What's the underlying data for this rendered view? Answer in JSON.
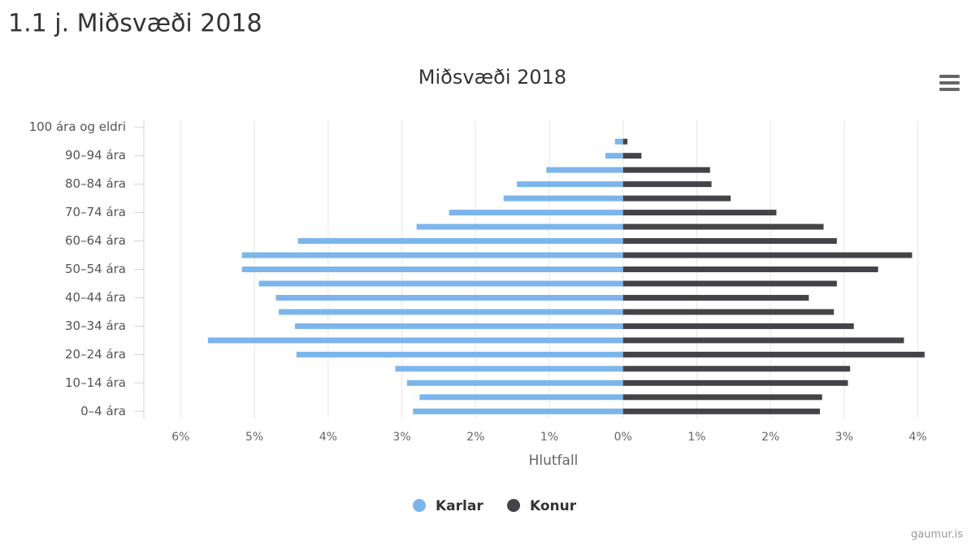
{
  "page_title": "1.1 j. Miðsvæði 2018",
  "credit": "gaumur.is",
  "chart_data": {
    "type": "pyramid",
    "title": "Miðsvæði 2018",
    "x_label": "Hlutfall",
    "categories": [
      "0–4 ára",
      null,
      "10–14 ára",
      null,
      "20–24 ára",
      null,
      "30–34 ára",
      null,
      "40–44 ára",
      null,
      "50–54 ára",
      null,
      "60–64 ára",
      null,
      "70–74 ára",
      null,
      "80–84 ára",
      null,
      "90–94 ára",
      null,
      "100 ára og eldri"
    ],
    "series": [
      {
        "name": "Karlar",
        "color": "#7cb5ec",
        "values": [
          -2.85,
          -2.76,
          -2.93,
          -3.09,
          -4.43,
          -5.63,
          -4.45,
          -4.67,
          -4.71,
          -4.94,
          -5.17,
          -5.17,
          -4.41,
          -2.8,
          -2.36,
          -1.62,
          -1.44,
          -1.04,
          -0.24,
          -0.11,
          0
        ]
      },
      {
        "name": "Konur",
        "color": "#434348",
        "values": [
          2.67,
          2.7,
          3.05,
          3.08,
          4.09,
          3.81,
          3.13,
          2.86,
          2.52,
          2.9,
          3.46,
          3.92,
          2.9,
          2.72,
          2.08,
          1.46,
          1.2,
          1.18,
          0.25,
          0.06,
          0
        ]
      }
    ],
    "xlim": [
      -6.5,
      4.5
    ],
    "xticks": [
      {
        "value": -6,
        "label": "6%"
      },
      {
        "value": -5,
        "label": "5%"
      },
      {
        "value": -4,
        "label": "4%"
      },
      {
        "value": -3,
        "label": "3%"
      },
      {
        "value": -2,
        "label": "2%"
      },
      {
        "value": -1,
        "label": "1%"
      },
      {
        "value": 0,
        "label": "0%"
      },
      {
        "value": 1,
        "label": "1%"
      },
      {
        "value": 2,
        "label": "2%"
      },
      {
        "value": 3,
        "label": "3%"
      },
      {
        "value": 4,
        "label": "4%"
      }
    ],
    "grid": true,
    "legend": "bottom"
  }
}
